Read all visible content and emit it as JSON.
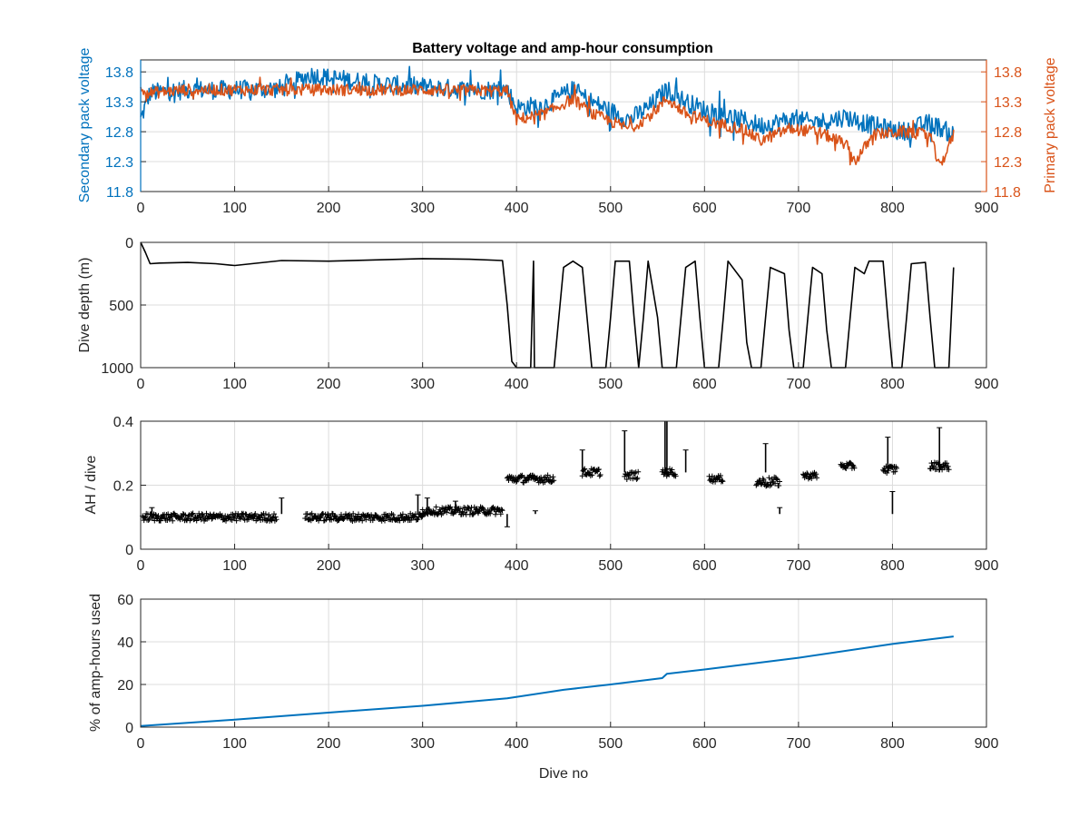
{
  "figure": {
    "title": "Battery voltage and amp-hour consumption"
  },
  "colors": {
    "secondary": "#0072BD",
    "primary": "#D95319",
    "black": "#000000",
    "axis": "#262626",
    "grid": "#dcdcdc"
  },
  "chart_data": [
    {
      "type": "line",
      "title": "Battery voltage and amp-hour consumption",
      "xlabel": "",
      "ylabel": "Secondary pack voltage",
      "ylabel_right": "Primary pack voltage",
      "xlim": [
        0,
        900
      ],
      "ylim": [
        11.8,
        14.0
      ],
      "x_ticks": [
        0,
        100,
        200,
        300,
        400,
        500,
        600,
        700,
        800,
        900
      ],
      "y_ticks": [
        11.8,
        12.3,
        12.8,
        13.3,
        13.8
      ],
      "y_ticks_right": [
        11.8,
        12.3,
        12.8,
        13.3,
        13.8
      ],
      "grid": true,
      "series": [
        {
          "name": "Secondary pack voltage",
          "color": "#0072BD",
          "noise": 0.16,
          "points": [
            [
              0,
              13.0
            ],
            [
              10,
              13.45
            ],
            [
              50,
              13.5
            ],
            [
              100,
              13.5
            ],
            [
              150,
              13.52
            ],
            [
              180,
              13.75
            ],
            [
              250,
              13.6
            ],
            [
              300,
              13.55
            ],
            [
              350,
              13.5
            ],
            [
              390,
              13.5
            ],
            [
              400,
              13.2
            ],
            [
              430,
              13.25
            ],
            [
              460,
              13.5
            ],
            [
              480,
              13.3
            ],
            [
              520,
              13.0
            ],
            [
              540,
              13.2
            ],
            [
              560,
              13.5
            ],
            [
              580,
              13.3
            ],
            [
              610,
              13.1
            ],
            [
              640,
              13.0
            ],
            [
              660,
              12.9
            ],
            [
              690,
              13.0
            ],
            [
              720,
              12.95
            ],
            [
              750,
              13.05
            ],
            [
              780,
              12.9
            ],
            [
              810,
              12.8
            ],
            [
              840,
              12.95
            ],
            [
              865,
              12.75
            ]
          ]
        },
        {
          "name": "Primary pack voltage",
          "color": "#D95319",
          "noise": 0.1,
          "points": [
            [
              0,
              13.5
            ],
            [
              10,
              13.45
            ],
            [
              50,
              13.5
            ],
            [
              100,
              13.5
            ],
            [
              200,
              13.5
            ],
            [
              300,
              13.5
            ],
            [
              390,
              13.48
            ],
            [
              400,
              13.0
            ],
            [
              430,
              13.1
            ],
            [
              460,
              13.35
            ],
            [
              480,
              13.1
            ],
            [
              520,
              12.85
            ],
            [
              540,
              13.05
            ],
            [
              560,
              13.35
            ],
            [
              580,
              13.1
            ],
            [
              610,
              12.95
            ],
            [
              640,
              12.85
            ],
            [
              660,
              12.65
            ],
            [
              690,
              12.85
            ],
            [
              720,
              12.8
            ],
            [
              750,
              12.6
            ],
            [
              760,
              12.3
            ],
            [
              780,
              12.75
            ],
            [
              810,
              12.8
            ],
            [
              840,
              12.75
            ],
            [
              850,
              12.2
            ],
            [
              865,
              12.75
            ]
          ]
        }
      ]
    },
    {
      "type": "line",
      "xlabel": "",
      "ylabel": "Dive depth (m)",
      "xlim": [
        0,
        900
      ],
      "ylim": [
        0,
        1000
      ],
      "y_reversed": true,
      "x_ticks": [
        0,
        100,
        200,
        300,
        400,
        500,
        600,
        700,
        800,
        900
      ],
      "y_ticks": [
        0,
        500,
        1000
      ],
      "grid": true,
      "series": [
        {
          "name": "",
          "color": "#000000",
          "points": [
            [
              0,
              0
            ],
            [
              5,
              80
            ],
            [
              10,
              170
            ],
            [
              20,
              165
            ],
            [
              50,
              160
            ],
            [
              80,
              170
            ],
            [
              100,
              185
            ],
            [
              150,
              145
            ],
            [
              200,
              150
            ],
            [
              250,
              140
            ],
            [
              300,
              130
            ],
            [
              350,
              135
            ],
            [
              385,
              145
            ],
            [
              390,
              500
            ],
            [
              395,
              950
            ],
            [
              400,
              1000
            ],
            [
              415,
              1000
            ],
            [
              418,
              150
            ],
            [
              419,
              1000
            ],
            [
              420,
              1000
            ],
            [
              440,
              1000
            ],
            [
              445,
              600
            ],
            [
              450,
              200
            ],
            [
              460,
              150
            ],
            [
              470,
              200
            ],
            [
              475,
              600
            ],
            [
              480,
              1000
            ],
            [
              495,
              1000
            ],
            [
              500,
              600
            ],
            [
              505,
              150
            ],
            [
              520,
              150
            ],
            [
              525,
              600
            ],
            [
              530,
              1000
            ],
            [
              535,
              600
            ],
            [
              540,
              150
            ],
            [
              550,
              600
            ],
            [
              555,
              1000
            ],
            [
              570,
              1000
            ],
            [
              575,
              600
            ],
            [
              580,
              200
            ],
            [
              590,
              150
            ],
            [
              595,
              600
            ],
            [
              600,
              1000
            ],
            [
              615,
              1000
            ],
            [
              620,
              600
            ],
            [
              625,
              150
            ],
            [
              640,
              300
            ],
            [
              645,
              800
            ],
            [
              650,
              1000
            ],
            [
              660,
              1000
            ],
            [
              665,
              600
            ],
            [
              670,
              200
            ],
            [
              685,
              250
            ],
            [
              690,
              700
            ],
            [
              695,
              1000
            ],
            [
              705,
              1000
            ],
            [
              710,
              600
            ],
            [
              715,
              200
            ],
            [
              725,
              250
            ],
            [
              730,
              700
            ],
            [
              735,
              1000
            ],
            [
              750,
              1000
            ],
            [
              755,
              600
            ],
            [
              760,
              200
            ],
            [
              770,
              250
            ],
            [
              775,
              150
            ],
            [
              790,
              150
            ],
            [
              795,
              600
            ],
            [
              800,
              1000
            ],
            [
              810,
              1000
            ],
            [
              815,
              600
            ],
            [
              820,
              170
            ],
            [
              835,
              160
            ],
            [
              840,
              600
            ],
            [
              845,
              1000
            ],
            [
              860,
              1000
            ],
            [
              865,
              200
            ]
          ]
        }
      ]
    },
    {
      "type": "scatter",
      "xlabel": "",
      "ylabel": "AH / dive",
      "xlim": [
        0,
        900
      ],
      "ylim": [
        0,
        0.4
      ],
      "x_ticks": [
        0,
        100,
        200,
        300,
        400,
        500,
        600,
        700,
        800,
        900
      ],
      "y_ticks": [
        0,
        0.2,
        0.4
      ],
      "grid": true,
      "series": [
        {
          "name": "",
          "color": "#000000",
          "clusters": [
            {
              "x": [
                2,
                145
              ],
              "y": 0.1,
              "spread": 0.012
            },
            {
              "x": [
                175,
                300
              ],
              "y": 0.1,
              "spread": 0.012
            },
            {
              "x": [
                300,
                385
              ],
              "y": 0.12,
              "spread": 0.012
            },
            {
              "x": [
                390,
                440
              ],
              "y": 0.22,
              "spread": 0.012
            },
            {
              "x": [
                470,
                490
              ],
              "y": 0.24,
              "spread": 0.012
            },
            {
              "x": [
                515,
                530
              ],
              "y": 0.23,
              "spread": 0.012
            },
            {
              "x": [
                555,
                570
              ],
              "y": 0.24,
              "spread": 0.012
            },
            {
              "x": [
                605,
                620
              ],
              "y": 0.22,
              "spread": 0.01
            },
            {
              "x": [
                655,
                680
              ],
              "y": 0.21,
              "spread": 0.015
            },
            {
              "x": [
                705,
                720
              ],
              "y": 0.23,
              "spread": 0.01
            },
            {
              "x": [
                745,
                760
              ],
              "y": 0.26,
              "spread": 0.01
            },
            {
              "x": [
                790,
                805
              ],
              "y": 0.25,
              "spread": 0.012
            },
            {
              "x": [
                840,
                860
              ],
              "y": 0.26,
              "spread": 0.012
            }
          ],
          "spikes": [
            [
              12,
              0.13
            ],
            [
              150,
              0.16
            ],
            [
              295,
              0.17
            ],
            [
              305,
              0.16
            ],
            [
              335,
              0.15
            ],
            [
              390,
              0.07
            ],
            [
              420,
              0.12
            ],
            [
              470,
              0.31
            ],
            [
              515,
              0.37
            ],
            [
              558,
              0.4
            ],
            [
              560,
              0.42
            ],
            [
              580,
              0.31
            ],
            [
              665,
              0.33
            ],
            [
              680,
              0.13
            ],
            [
              795,
              0.35
            ],
            [
              800,
              0.18
            ],
            [
              850,
              0.38
            ]
          ]
        }
      ]
    },
    {
      "type": "line",
      "xlabel": "Dive no",
      "ylabel": "% of amp-hours used",
      "xlim": [
        0,
        900
      ],
      "ylim": [
        0,
        60
      ],
      "x_ticks": [
        0,
        100,
        200,
        300,
        400,
        500,
        600,
        700,
        800,
        900
      ],
      "y_ticks": [
        0,
        20,
        40,
        60
      ],
      "grid": true,
      "series": [
        {
          "name": "",
          "color": "#0072BD",
          "points": [
            [
              0,
              0.5
            ],
            [
              100,
              3.5
            ],
            [
              200,
              6.8
            ],
            [
              300,
              10
            ],
            [
              390,
              13.5
            ],
            [
              450,
              17.5
            ],
            [
              500,
              20
            ],
            [
              555,
              23
            ],
            [
              560,
              25
            ],
            [
              600,
              27
            ],
            [
              700,
              32.5
            ],
            [
              800,
              39
            ],
            [
              865,
              42.5
            ]
          ]
        }
      ]
    }
  ]
}
